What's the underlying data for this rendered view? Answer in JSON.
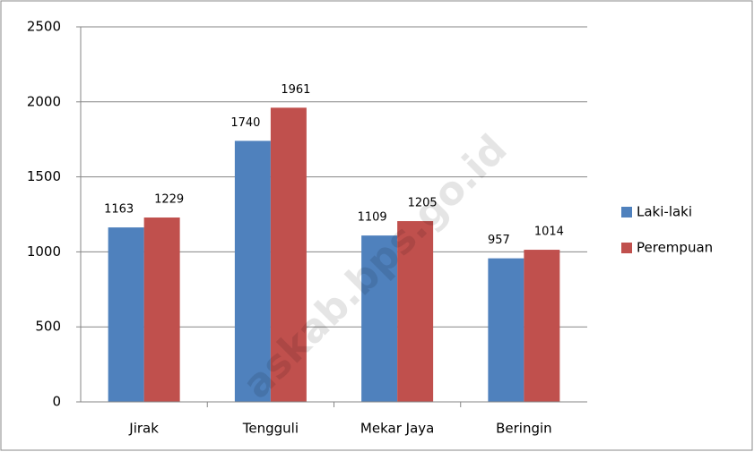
{
  "chart_data": {
    "type": "bar",
    "categories": [
      "Jirak",
      "Tengguli",
      "Mekar Jaya",
      "Beringin"
    ],
    "series": [
      {
        "name": "Laki-laki",
        "color": "#4f81bd",
        "values": [
          1163,
          1740,
          1109,
          957
        ]
      },
      {
        "name": "Perempuan",
        "color": "#c0504d",
        "values": [
          1229,
          1961,
          1205,
          1014
        ]
      }
    ],
    "ylim": [
      0,
      2500
    ],
    "yticks": [
      0,
      500,
      1000,
      1500,
      2000,
      2500
    ],
    "grid": true,
    "legend": "right",
    "watermark": "askab.bps.go.id"
  }
}
